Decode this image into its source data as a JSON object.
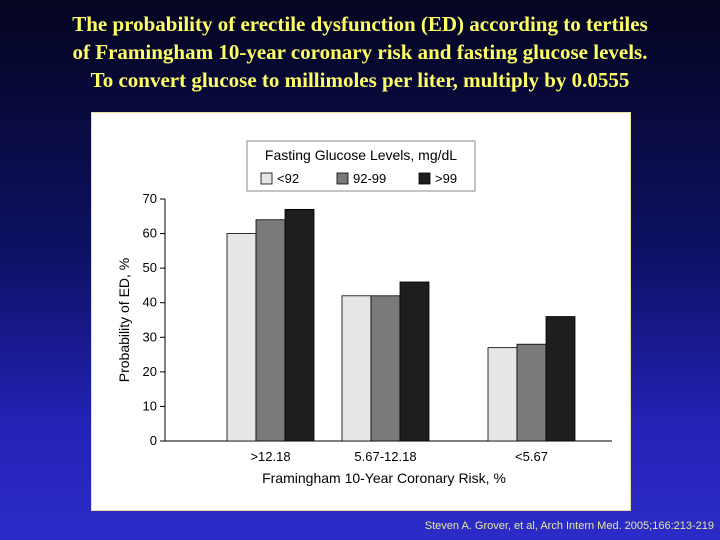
{
  "slide": {
    "title_lines": [
      "The probability of erectile dysfunction (ED) according to tertiles",
      "of Framingham 10-year coronary risk and fasting glucose levels.",
      "To convert glucose to millimoles per liter, multiply by 0.0555"
    ],
    "citation": "Steven A. Grover, et al, Arch Intern Med. 2005;166:213-219",
    "title_color": "#ffff66"
  },
  "chart_data": {
    "type": "bar",
    "title": "",
    "xlabel": "Framingham 10-Year Coronary Risk, %",
    "ylabel": "Probability of ED, %",
    "ylim": [
      0,
      70
    ],
    "yticks": [
      0,
      10,
      20,
      30,
      40,
      50,
      60,
      70
    ],
    "categories": [
      ">12.18",
      "5.67-12.18",
      "<5.67"
    ],
    "legend_title": "Fasting Glucose Levels, mg/dL",
    "legend_position": "top-center",
    "grid": false,
    "series": [
      {
        "name": "<92",
        "color": "#e6e6e6",
        "values": [
          60,
          42,
          27
        ]
      },
      {
        "name": "92-99",
        "color": "#7a7a7a",
        "values": [
          64,
          42,
          28
        ]
      },
      {
        "name": ">99",
        "color": "#1e1e1e",
        "values": [
          67,
          46,
          36
        ]
      }
    ]
  }
}
